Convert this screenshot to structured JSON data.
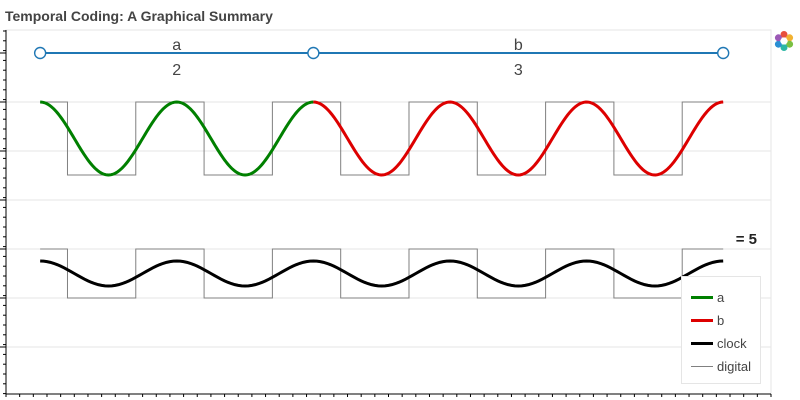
{
  "title": "Temporal Coding: A Graphical Summary",
  "toolbar": {
    "logo_icon": "bokeh-logo-icon"
  },
  "colors": {
    "a": "#008000",
    "b": "#dd0000",
    "clock": "#000000",
    "digital": "#808080",
    "segment_line": "#1f77b4"
  },
  "chart_data": {
    "type": "line",
    "x_range": [
      -0.5,
      10.7
    ],
    "segments": [
      {
        "name": "a",
        "value": "2",
        "x_start": 0,
        "x_end": 4
      },
      {
        "name": "b",
        "value": "3",
        "x_start": 4,
        "x_end": 10
      }
    ],
    "period_label": "= 5",
    "wave_cycles": 5,
    "series": [
      {
        "name": "a",
        "x_range": [
          0,
          4
        ]
      },
      {
        "name": "b",
        "x_range": [
          4,
          10
        ]
      },
      {
        "name": "clock",
        "x_range": [
          0,
          10
        ]
      },
      {
        "name": "digital",
        "x_range": [
          0,
          10
        ]
      }
    ],
    "legend": {
      "position": "bottom-right",
      "items": [
        {
          "label": "a",
          "color": "#008000",
          "width": 3
        },
        {
          "label": "b",
          "color": "#dd0000",
          "width": 3
        },
        {
          "label": "clock",
          "color": "#000000",
          "width": 3
        },
        {
          "label": "digital",
          "color": "#808080",
          "width": 1
        }
      ]
    },
    "grid": true
  }
}
